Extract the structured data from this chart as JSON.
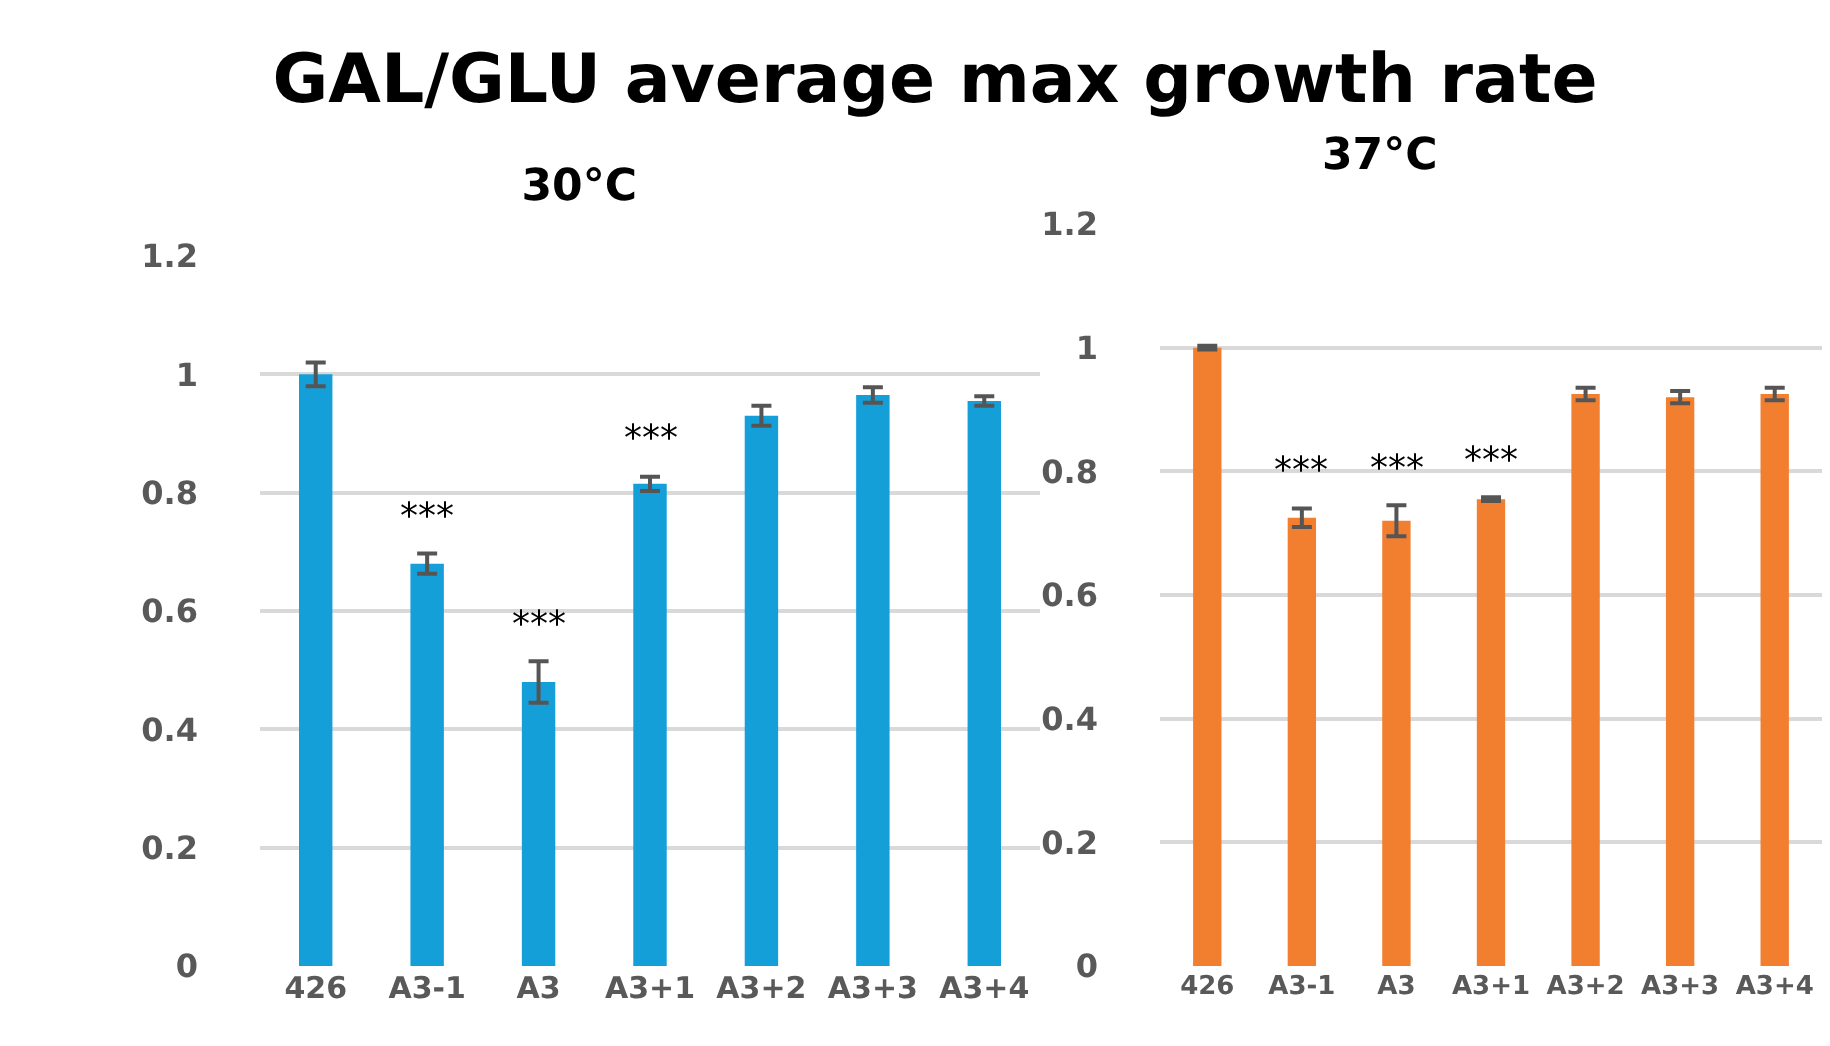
{
  "chart_data": [
    {
      "type": "bar",
      "title": "GAL/GLU average max growth rate",
      "subtitle": "30°C",
      "categories": [
        "426",
        "A3-1",
        "A3",
        "A3+1",
        "A3+2",
        "A3+3",
        "A3+4"
      ],
      "series": [
        {
          "color": "#159fd9",
          "values": [
            1.0,
            0.68,
            0.48,
            0.815,
            0.93,
            0.965,
            0.955
          ],
          "errors": [
            0.02,
            0.017,
            0.035,
            0.012,
            0.017,
            0.013,
            0.008
          ]
        }
      ],
      "ylim": [
        0,
        1.2
      ],
      "yticks": [
        0,
        0.2,
        0.4,
        0.6,
        0.8,
        1,
        1.2
      ],
      "grid": "y",
      "annotations": [
        {
          "text": "***",
          "x": "A3-1",
          "y": 0.68
        },
        {
          "text": "***",
          "x": "A3",
          "y": 0.48
        },
        {
          "text": "***",
          "x": "A3+1",
          "y": 0.815
        }
      ]
    },
    {
      "type": "bar",
      "title": "37°C",
      "categories": [
        "426",
        "A3-1",
        "A3",
        "A3+1",
        "A3+2",
        "A3+3",
        "A3+4"
      ],
      "series": [
        {
          "color": "#f27f30",
          "values": [
            1.0,
            0.725,
            0.72,
            0.755,
            0.925,
            0.92,
            0.925
          ],
          "errors": [
            0.003,
            0.015,
            0.025,
            0.003,
            0.01,
            0.01,
            0.01
          ]
        }
      ],
      "ylim": [
        0,
        1.2
      ],
      "yticks": [
        0,
        0.2,
        0.4,
        0.6,
        0.8,
        1,
        1.2
      ],
      "grid": "y",
      "annotations": [
        {
          "text": "***",
          "x": "A3-1",
          "y": 0.725
        },
        {
          "text": "***",
          "x": "A3",
          "y": 0.72
        },
        {
          "text": "***",
          "x": "A3+1",
          "y": 0.755
        }
      ]
    }
  ]
}
